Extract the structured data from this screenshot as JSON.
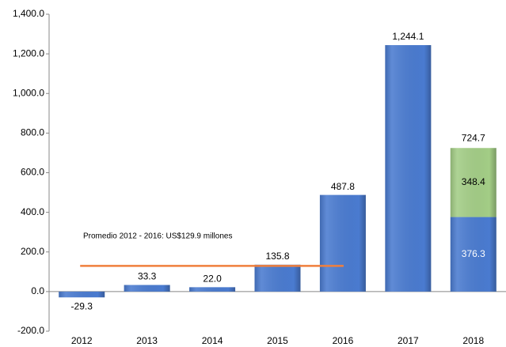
{
  "chart_data": {
    "type": "stacked_bar",
    "categories": [
      "2012",
      "2013",
      "2014",
      "2015",
      "2016",
      "2017",
      "2018"
    ],
    "series": [
      {
        "color": "#4a7bd0",
        "values": [
          -29.3,
          33.3,
          22.0,
          135.8,
          487.8,
          1244.1,
          376.3
        ],
        "value_labels": [
          "-29.3",
          "33.3",
          "22.0",
          "135.8",
          "487.8",
          "1,244.1",
          "376.3"
        ]
      },
      {
        "color": "#a3cd86",
        "values": [
          null,
          null,
          null,
          null,
          null,
          null,
          348.4
        ],
        "value_labels": [
          null,
          null,
          null,
          null,
          null,
          null,
          "348.4"
        ]
      }
    ],
    "totals": [
      null,
      null,
      null,
      null,
      null,
      null,
      724.7
    ],
    "reference_line": {
      "value": 129.9,
      "label": "Promedio 2012 - 2016: US$129.9 millones",
      "color": "#f07f3c"
    },
    "ylim": [
      -200,
      1400
    ],
    "yticks": [
      {
        "value": -200,
        "label": "-200.0"
      },
      {
        "value": 0,
        "label": "0.0"
      },
      {
        "value": 200,
        "label": "200.0"
      },
      {
        "value": 400,
        "label": "400.0"
      },
      {
        "value": 600,
        "label": "600.0"
      },
      {
        "value": 800,
        "label": "800.0"
      },
      {
        "value": 1000,
        "label": "1,000.0"
      },
      {
        "value": 1200,
        "label": "1,200.0"
      },
      {
        "value": 1400,
        "label": "1,400.0"
      }
    ]
  }
}
